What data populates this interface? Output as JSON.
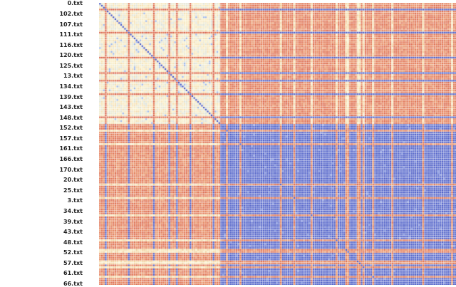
{
  "chart_data": {
    "type": "heatmap",
    "title": "",
    "xlabel": "",
    "ylabel": "",
    "y_tick_labels": [
      "0.txt",
      "102.txt",
      "107.txt",
      "111.txt",
      "116.txt",
      "120.txt",
      "125.txt",
      "13.txt",
      "134.txt",
      "139.txt",
      "143.txt",
      "148.txt",
      "152.txt",
      "157.txt",
      "161.txt",
      "166.txt",
      "170.txt",
      "20.txt",
      "25.txt",
      "3.txt",
      "34.txt",
      "39.txt",
      "43.txt",
      "48.txt",
      "52.txt",
      "57.txt",
      "61.txt",
      "66.txt"
    ],
    "matrix_size": 200,
    "visible_rows": 147,
    "row_tick_step": 5.4,
    "block_boundary_index": 63,
    "colorscale": [
      "#3b4cc0",
      "#ffffbf",
      "#b40426"
    ],
    "note_values": "similarity matrix; upper-left block high similarity (light), lower-right block low (blue), off-diagonal blocks medium (orange-red); diagonal = 0",
    "block_values": {
      "block_A_within": 0.85,
      "block_B_within": 0.1,
      "between_blocks": 0.6,
      "diagonal": 0.0
    }
  }
}
